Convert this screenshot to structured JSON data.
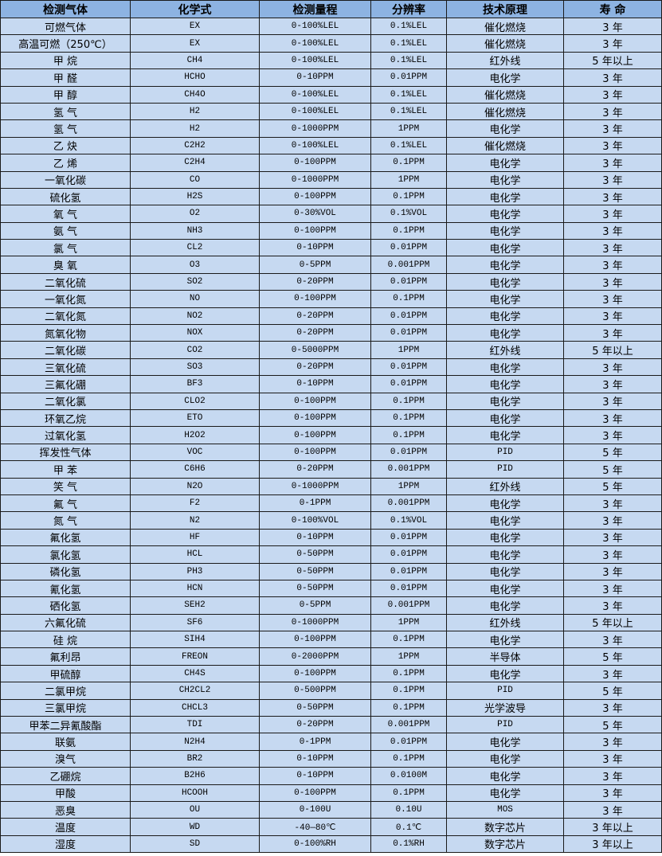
{
  "headers": [
    "检测气体",
    "化学式",
    "检测量程",
    "分辨率",
    "技术原理",
    "寿 命"
  ],
  "rows": [
    [
      "可燃气体",
      "EX",
      "0-100%LEL",
      "0.1%LEL",
      "催化燃烧",
      "3 年"
    ],
    [
      "高温可燃（250℃）",
      "EX",
      "0-100%LEL",
      "0.1%LEL",
      "催化燃烧",
      "3 年"
    ],
    [
      "甲 烷",
      "CH4",
      "0-100%LEL",
      "0.1%LEL",
      "红外线",
      "5 年以上"
    ],
    [
      "甲 醛",
      "HCHO",
      "0-10PPM",
      "0.01PPM",
      "电化学",
      "3 年"
    ],
    [
      "甲 醇",
      "CH4O",
      "0-100%LEL",
      "0.1%LEL",
      "催化燃烧",
      "3 年"
    ],
    [
      "氢 气",
      "H2",
      "0-100%LEL",
      "0.1%LEL",
      "催化燃烧",
      "3 年"
    ],
    [
      "氢 气",
      "H2",
      "0-1000PPM",
      "1PPM",
      "电化学",
      "3 年"
    ],
    [
      "乙 炔",
      "C2H2",
      "0-100%LEL",
      "0.1%LEL",
      "催化燃烧",
      "3 年"
    ],
    [
      "乙 烯",
      "C2H4",
      "0-100PPM",
      "0.1PPM",
      "电化学",
      "3 年"
    ],
    [
      "一氧化碳",
      "CO",
      "0-1000PPM",
      "1PPM",
      "电化学",
      "3 年"
    ],
    [
      "硫化氢",
      "H2S",
      "0-100PPM",
      "0.1PPM",
      "电化学",
      "3 年"
    ],
    [
      "氧 气",
      "O2",
      "0-30%VOL",
      "0.1%VOL",
      "电化学",
      "3 年"
    ],
    [
      "氨 气",
      "NH3",
      "0-100PPM",
      "0.1PPM",
      "电化学",
      "3 年"
    ],
    [
      "氯 气",
      "CL2",
      "0-10PPM",
      "0.01PPM",
      "电化学",
      "3 年"
    ],
    [
      "臭 氧",
      "O3",
      "0-5PPM",
      "0.001PPM",
      "电化学",
      "3 年"
    ],
    [
      "二氧化硫",
      "SO2",
      "0-20PPM",
      "0.01PPM",
      "电化学",
      "3 年"
    ],
    [
      "一氧化氮",
      "NO",
      "0-100PPM",
      "0.1PPM",
      "电化学",
      "3 年"
    ],
    [
      "二氧化氮",
      "NO2",
      "0-20PPM",
      "0.01PPM",
      "电化学",
      "3 年"
    ],
    [
      "氮氧化物",
      "NOX",
      "0-20PPM",
      "0.01PPM",
      "电化学",
      "3 年"
    ],
    [
      "二氧化碳",
      "CO2",
      "0-5000PPM",
      "1PPM",
      "红外线",
      "5 年以上"
    ],
    [
      "三氧化硫",
      "SO3",
      "0-20PPM",
      "0.01PPM",
      "电化学",
      "3 年"
    ],
    [
      "三氟化硼",
      "BF3",
      "0-10PPM",
      "0.01PPM",
      "电化学",
      "3 年"
    ],
    [
      "二氧化氯",
      "CLO2",
      "0-100PPM",
      "0.1PPM",
      "电化学",
      "3 年"
    ],
    [
      "环氧乙烷",
      "ETO",
      "0-100PPM",
      "0.1PPM",
      "电化学",
      "3 年"
    ],
    [
      "过氧化氢",
      "H2O2",
      "0-100PPM",
      "0.1PPM",
      "电化学",
      "3 年"
    ],
    [
      "挥发性气体",
      "VOC",
      "0-100PPM",
      "0.01PPM",
      "PID",
      "5 年"
    ],
    [
      "甲 苯",
      "C6H6",
      "0-20PPM",
      "0.001PPM",
      "PID",
      "5 年"
    ],
    [
      "笑 气",
      "N2O",
      "0-1000PPM",
      "1PPM",
      "红外线",
      "5 年"
    ],
    [
      "氟 气",
      "F2",
      "0-1PPM",
      "0.001PPM",
      "电化学",
      "3 年"
    ],
    [
      "氮 气",
      "N2",
      "0-100%VOL",
      "0.1%VOL",
      "电化学",
      "3 年"
    ],
    [
      "氟化氢",
      "HF",
      "0-10PPM",
      "0.01PPM",
      "电化学",
      "3 年"
    ],
    [
      "氯化氢",
      "HCL",
      "0-50PPM",
      "0.01PPM",
      "电化学",
      "3 年"
    ],
    [
      "磷化氢",
      "PH3",
      "0-50PPM",
      "0.01PPM",
      "电化学",
      "3 年"
    ],
    [
      "氰化氢",
      "HCN",
      "0-50PPM",
      "0.01PPM",
      "电化学",
      "3 年"
    ],
    [
      "硒化氢",
      "SEH2",
      "0-5PPM",
      "0.001PPM",
      "电化学",
      "3 年"
    ],
    [
      "六氟化硫",
      "SF6",
      "0-1000PPM",
      "1PPM",
      "红外线",
      "5 年以上"
    ],
    [
      "硅 烷",
      "SIH4",
      "0-100PPM",
      "0.1PPM",
      "电化学",
      "3 年"
    ],
    [
      "氟利昂",
      "FREON",
      "0-2000PPM",
      "1PPM",
      "半导体",
      "5 年"
    ],
    [
      "甲硫醇",
      "CH4S",
      "0-100PPM",
      "0.1PPM",
      "电化学",
      "3 年"
    ],
    [
      "二氯甲烷",
      "CH2CL2",
      "0-500PPM",
      "0.1PPM",
      "PID",
      "5 年"
    ],
    [
      "三氯甲烷",
      "CHCL3",
      "0-50PPM",
      "0.1PPM",
      "光学波导",
      "3 年"
    ],
    [
      "甲苯二异氰酸酯",
      "TDI",
      "0-20PPM",
      "0.001PPM",
      "PID",
      "5 年"
    ],
    [
      "联氨",
      "N2H4",
      "0-1PPM",
      "0.01PPM",
      "电化学",
      "3 年"
    ],
    [
      "溴气",
      "BR2",
      "0-10PPM",
      "0.1PPM",
      "电化学",
      "3 年"
    ],
    [
      "乙硼烷",
      "B2H6",
      "0-10PPM",
      "0.0100M",
      "电化学",
      "3 年"
    ],
    [
      "甲酸",
      "HCOOH",
      "0-100PPM",
      "0.1PPM",
      "电化学",
      "3 年"
    ],
    [
      "恶臭",
      "OU",
      "0-100U",
      "0.10U",
      "MOS",
      "3 年"
    ],
    [
      "温度",
      "WD",
      "-40—80℃",
      "0.1℃",
      "数字芯片",
      "3 年以上"
    ],
    [
      "湿度",
      "SD",
      "0-100%RH",
      "0.1%RH",
      "数字芯片",
      "3 年以上"
    ]
  ],
  "colors": {
    "header_bg": "#8db3e2",
    "row_bg": "#c6d9f1",
    "border": "#1a1a1a"
  }
}
